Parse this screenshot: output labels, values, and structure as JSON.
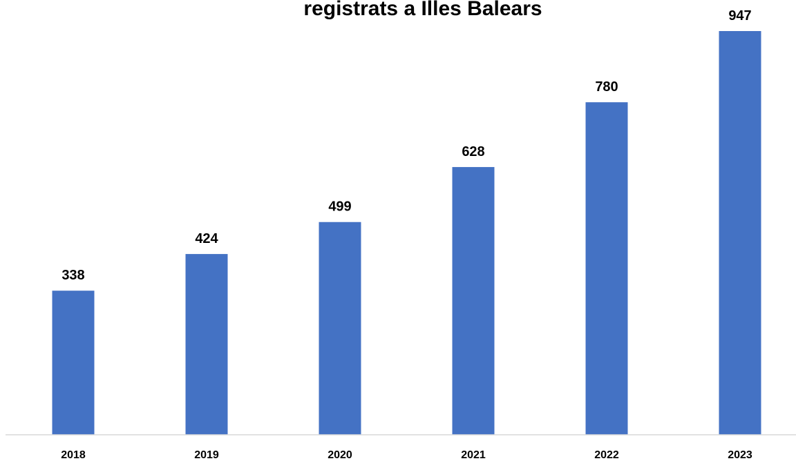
{
  "chart_data": {
    "type": "bar",
    "title": "registrats a Illes Balears",
    "categories": [
      "2018",
      "2019",
      "2020",
      "2021",
      "2022",
      "2023"
    ],
    "values": [
      338,
      424,
      499,
      628,
      780,
      947
    ],
    "xlabel": "",
    "ylabel": "",
    "ylim": [
      0,
      947
    ],
    "grid": false,
    "legend": "none",
    "bar_color": "#4472C4",
    "axis_color": "#D9D9D9"
  }
}
